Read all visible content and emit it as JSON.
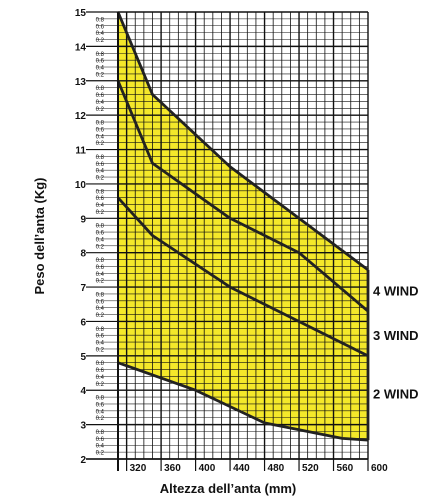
{
  "chart_data": {
    "type": "area",
    "xlabel": "Altezza dell’anta (mm)",
    "ylabel": "Peso dell’anta (Kg)",
    "xlim": [
      310,
      600
    ],
    "ylim": [
      2,
      15
    ],
    "x_ticks": [
      "320",
      "360",
      "400",
      "440",
      "480",
      "520",
      "560",
      "600"
    ],
    "y_ticks": [
      "2",
      "3",
      "4",
      "5",
      "6",
      "7",
      "8",
      "9",
      "10",
      "11",
      "12",
      "13",
      "14",
      "15"
    ],
    "y_minor_ticks": [
      "0.2",
      "0.4",
      "0.6",
      "0.8"
    ],
    "grid": true,
    "fill_color": "#f4e82a",
    "line_color": "#222222",
    "area": {
      "upper": [
        [
          310,
          15
        ],
        [
          350,
          12.6
        ],
        [
          440,
          10.5
        ],
        [
          600,
          7.5
        ]
      ],
      "lower": [
        [
          310,
          4.8
        ],
        [
          400,
          4.0
        ],
        [
          480,
          3.05
        ],
        [
          520,
          2.85
        ],
        [
          570,
          2.6
        ],
        [
          600,
          2.55
        ]
      ]
    },
    "series": [
      {
        "values": [
          [
            310,
            15
          ],
          [
            350,
            12.6
          ],
          [
            440,
            10.5
          ],
          [
            600,
            7.5
          ]
        ]
      },
      {
        "values": [
          [
            310,
            13
          ],
          [
            350,
            10.6
          ],
          [
            440,
            9.0
          ],
          [
            520,
            8.0
          ],
          [
            600,
            6.3
          ]
        ]
      },
      {
        "values": [
          [
            310,
            9.6
          ],
          [
            350,
            8.5
          ],
          [
            440,
            7.0
          ],
          [
            600,
            5.0
          ]
        ]
      },
      {
        "values": [
          [
            310,
            4.8
          ],
          [
            400,
            4.0
          ],
          [
            480,
            3.05
          ],
          [
            520,
            2.85
          ],
          [
            570,
            2.6
          ],
          [
            600,
            2.55
          ]
        ]
      }
    ],
    "region_labels": [
      {
        "text": "4 WIND",
        "y": 6.9
      },
      {
        "text": "3 WIND",
        "y": 5.6
      },
      {
        "text": "2 WIND",
        "y": 3.9
      }
    ]
  }
}
